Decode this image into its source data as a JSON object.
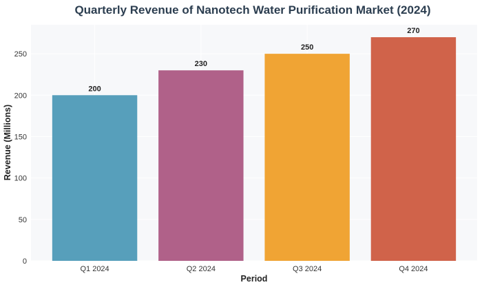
{
  "chart_data": {
    "type": "bar",
    "title": "Quarterly Revenue of Nanotech Water Purification Market (2024)",
    "xlabel": "Period",
    "ylabel": "Revenue (Millions)",
    "categories": [
      "Q1 2024",
      "Q2 2024",
      "Q3 2024",
      "Q4 2024"
    ],
    "values": [
      200,
      230,
      250,
      270
    ],
    "data_labels": [
      "200",
      "230",
      "250",
      "270"
    ],
    "colors": [
      "#579fbb",
      "#b06189",
      "#f0a434",
      "#d0634a"
    ],
    "ylim": [
      0,
      285
    ],
    "yticks": [
      0,
      50,
      100,
      150,
      200,
      250
    ],
    "grid": true,
    "background": "#f7f8fa"
  }
}
